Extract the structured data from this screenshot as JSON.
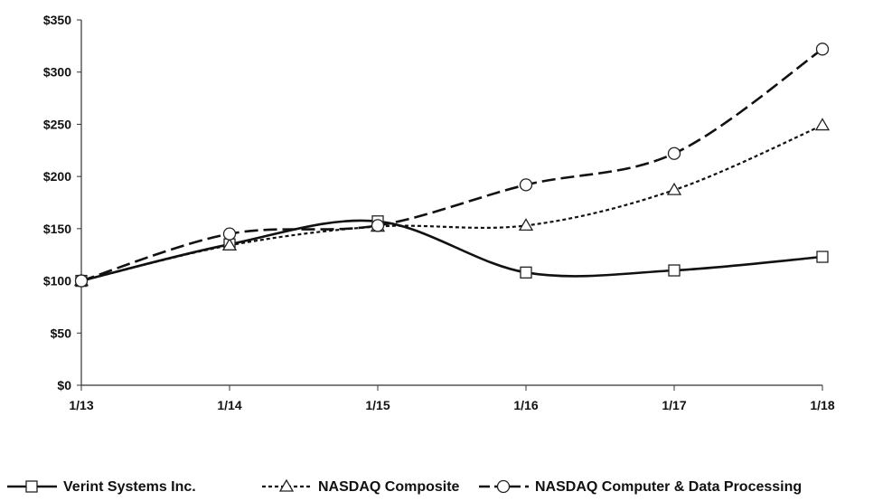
{
  "chart_data": {
    "type": "line",
    "title": "",
    "xlabel": "",
    "ylabel": "",
    "categories": [
      "1/13",
      "1/14",
      "1/15",
      "1/16",
      "1/17",
      "1/18"
    ],
    "ylim": [
      0,
      350
    ],
    "yticks": [
      "$0",
      "$50",
      "$100",
      "$150",
      "$200",
      "$250",
      "$300",
      "$350"
    ],
    "grid": false,
    "legend_position": "bottom",
    "series": [
      {
        "name": "Verint Systems Inc.",
        "marker": "square",
        "dash": "solid",
        "values": [
          100,
          135,
          157,
          108,
          110,
          123
        ]
      },
      {
        "name": "NASDAQ Composite",
        "marker": "triangle",
        "dash": "dotted",
        "values": [
          100,
          134,
          152,
          153,
          187,
          249
        ]
      },
      {
        "name": "NASDAQ Computer & Data Processing",
        "marker": "circle",
        "dash": "dashed",
        "values": [
          100,
          145,
          153,
          192,
          222,
          322
        ]
      }
    ]
  }
}
